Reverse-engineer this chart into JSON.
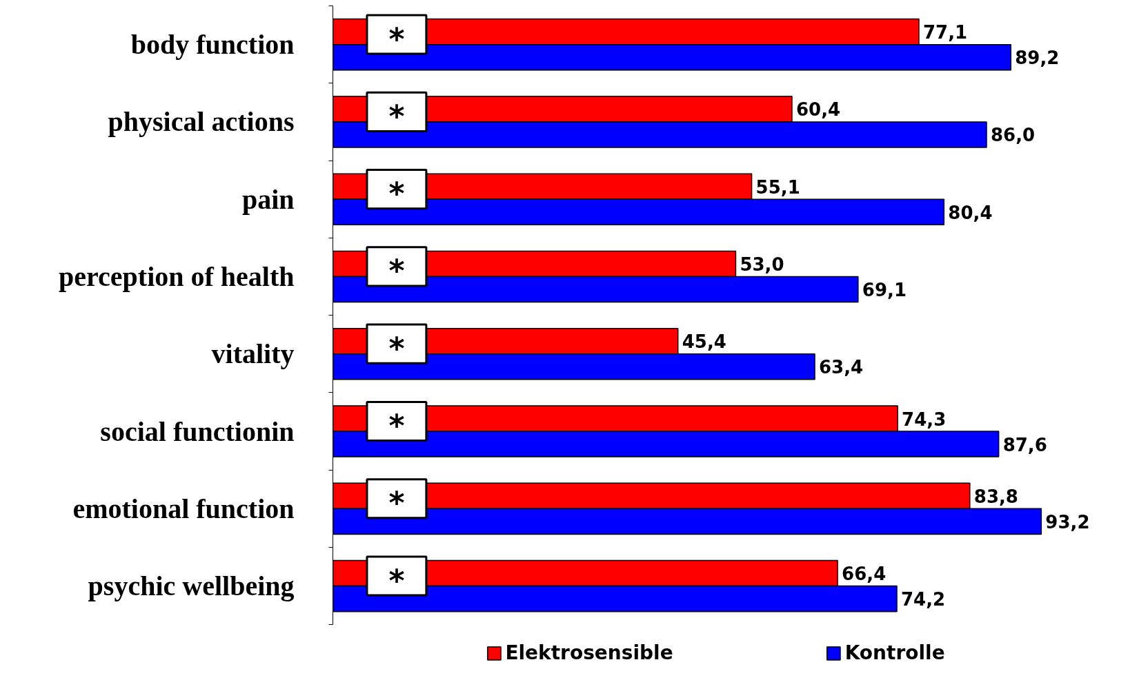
{
  "chart_data": {
    "type": "bar",
    "orientation": "horizontal",
    "categories": [
      "body function",
      "physical actions",
      "pain",
      "perception of health",
      "vitality",
      "social functionin",
      "emotional function",
      "psychic wellbeing"
    ],
    "series": [
      {
        "name": "Elektrosensible",
        "color": "#ff0000",
        "values": [
          77.1,
          60.4,
          55.1,
          53.0,
          45.4,
          74.3,
          83.8,
          66.4
        ],
        "value_labels": [
          "77,1",
          "60,4",
          "55,1",
          "53,0",
          "45,4",
          "74,3",
          "83,8",
          "66,4"
        ]
      },
      {
        "name": "Kontrolle",
        "color": "#0000ff",
        "values": [
          89.2,
          86.0,
          80.4,
          69.1,
          63.4,
          87.6,
          93.2,
          74.2
        ],
        "value_labels": [
          "89,2",
          "86,0",
          "80,4",
          "69,1",
          "63,4",
          "87,6",
          "93,2",
          "74,2"
        ]
      }
    ],
    "annotations": [
      {
        "text": "*",
        "y": "body function"
      },
      {
        "text": "*",
        "y": "physical actions"
      },
      {
        "text": "*",
        "y": "pain"
      },
      {
        "text": "*",
        "y": "perception of health"
      },
      {
        "text": "*",
        "y": "vitality"
      },
      {
        "text": "*",
        "y": "social functionin"
      },
      {
        "text": "*",
        "y": "emotional function"
      },
      {
        "text": "*",
        "y": "psychic wellbeing"
      }
    ],
    "legend": "bottom",
    "grid": false
  }
}
